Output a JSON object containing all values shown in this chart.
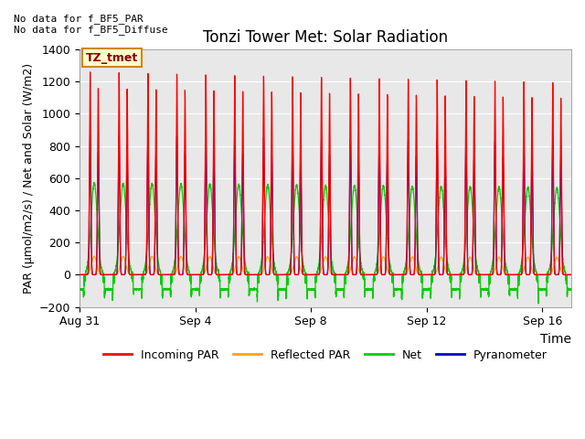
{
  "title": "Tonzi Tower Met: Solar Radiation",
  "xlabel": "Time",
  "ylabel": "PAR (μmol/m2/s) / Net and Solar (W/m2)",
  "ylim": [
    -200,
    1400
  ],
  "yticks": [
    -200,
    0,
    200,
    400,
    600,
    800,
    1000,
    1200,
    1400
  ],
  "xtick_labels": [
    "Aug 31",
    "Sep 4",
    "Sep 8",
    "Sep 12",
    "Sep 16"
  ],
  "xtick_positions": [
    0,
    4,
    8,
    12,
    16
  ],
  "annotation_text": "No data for f_BF5_PAR\nNo data for f_BF5_Diffuse",
  "legend_label": "TZ_tmet",
  "legend_entries": [
    "Incoming PAR",
    "Reflected PAR",
    "Net",
    "Pyranometer"
  ],
  "background_color": "#e8e8e8",
  "n_days": 17,
  "incoming_peak": 1260,
  "reflected_peak": 115,
  "net_peak": 570,
  "net_trough": -100,
  "pyranometer_peak": 870,
  "points_per_day": 480,
  "red_color": "#ff0000",
  "orange_color": "#ffa500",
  "green_color": "#00cc00",
  "blue_color": "#0000cc"
}
